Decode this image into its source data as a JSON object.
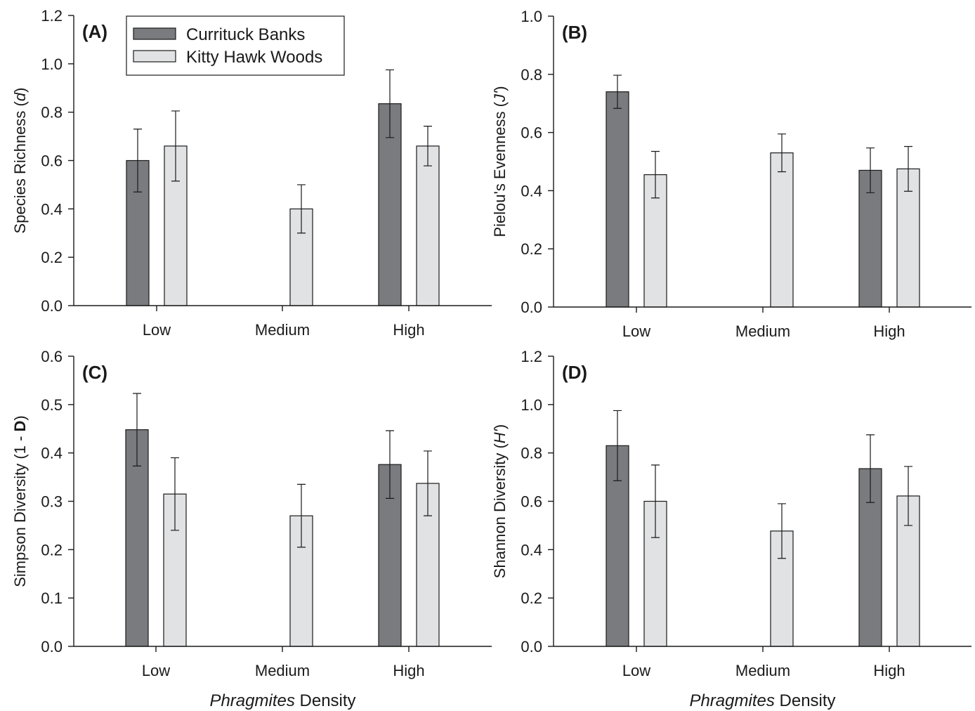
{
  "colors": {
    "series_dark": "#797b7e",
    "series_light": "#e1e2e4",
    "axis": "#1a1a1a"
  },
  "legend": {
    "entries": [
      "Currituck Banks",
      "Kitty Hawk Woods"
    ]
  },
  "x_title": {
    "italic": "Phragmites",
    "rest": " Density"
  },
  "chart_data": [
    {
      "type": "bar",
      "panel": "(A)",
      "ylabel_plain": "Species Richness (",
      "ylabel_italic": "d",
      "ylabel_end": ")",
      "ylim": [
        0,
        1.2
      ],
      "yticks": [
        "0.0",
        "0.2",
        "0.4",
        "0.6",
        "0.8",
        "1.0",
        "1.2"
      ],
      "categories": [
        "Low",
        "Medium",
        "High"
      ],
      "series": [
        {
          "name": "Currituck Banks",
          "values": [
            0.6,
            null,
            0.835
          ],
          "errors": [
            0.13,
            null,
            0.14
          ]
        },
        {
          "name": "Kitty Hawk Woods",
          "values": [
            0.66,
            0.4,
            0.66
          ],
          "errors": [
            0.145,
            0.1,
            0.082
          ]
        }
      ],
      "legend": "top-left"
    },
    {
      "type": "bar",
      "panel": "(B)",
      "ylabel_plain": "Pielou's Evenness (",
      "ylabel_italic": "J'",
      "ylabel_end": ")",
      "ylim": [
        0,
        1.0
      ],
      "yticks": [
        "0.0",
        "0.2",
        "0.4",
        "0.6",
        "0.8",
        "1.0"
      ],
      "categories": [
        "Low",
        "Medium",
        "High"
      ],
      "series": [
        {
          "name": "Currituck Banks",
          "values": [
            0.74,
            null,
            0.47
          ],
          "errors": [
            0.057,
            null,
            0.077
          ]
        },
        {
          "name": "Kitty Hawk Woods",
          "values": [
            0.455,
            0.53,
            0.475
          ],
          "errors": [
            0.08,
            0.065,
            0.077
          ]
        }
      ]
    },
    {
      "type": "bar",
      "panel": "(C)",
      "ylabel_plain": "Simpson Diversity (1 - ",
      "ylabel_bold": "D",
      "ylabel_end": ")",
      "ylim": [
        0,
        0.6
      ],
      "yticks": [
        "0.0",
        "0.1",
        "0.2",
        "0.3",
        "0.4",
        "0.5",
        "0.6"
      ],
      "categories": [
        "Low",
        "Medium",
        "High"
      ],
      "series": [
        {
          "name": "Currituck Banks",
          "values": [
            0.448,
            null,
            0.376
          ],
          "errors": [
            0.075,
            null,
            0.07
          ]
        },
        {
          "name": "Kitty Hawk Woods",
          "values": [
            0.315,
            0.27,
            0.337
          ],
          "errors": [
            0.075,
            0.065,
            0.067
          ]
        }
      ]
    },
    {
      "type": "bar",
      "panel": "(D)",
      "ylabel_plain": "Shannon Diversity (",
      "ylabel_italic": "H'",
      "ylabel_end": ")",
      "ylim": [
        0,
        1.2
      ],
      "yticks": [
        "0.0",
        "0.2",
        "0.4",
        "0.6",
        "0.8",
        "1.0",
        "1.2"
      ],
      "categories": [
        "Low",
        "Medium",
        "High"
      ],
      "series": [
        {
          "name": "Currituck Banks",
          "values": [
            0.83,
            null,
            0.735
          ],
          "errors": [
            0.145,
            null,
            0.14
          ]
        },
        {
          "name": "Kitty Hawk Woods",
          "values": [
            0.6,
            0.477,
            0.622
          ],
          "errors": [
            0.15,
            0.113,
            0.122
          ]
        }
      ]
    }
  ]
}
